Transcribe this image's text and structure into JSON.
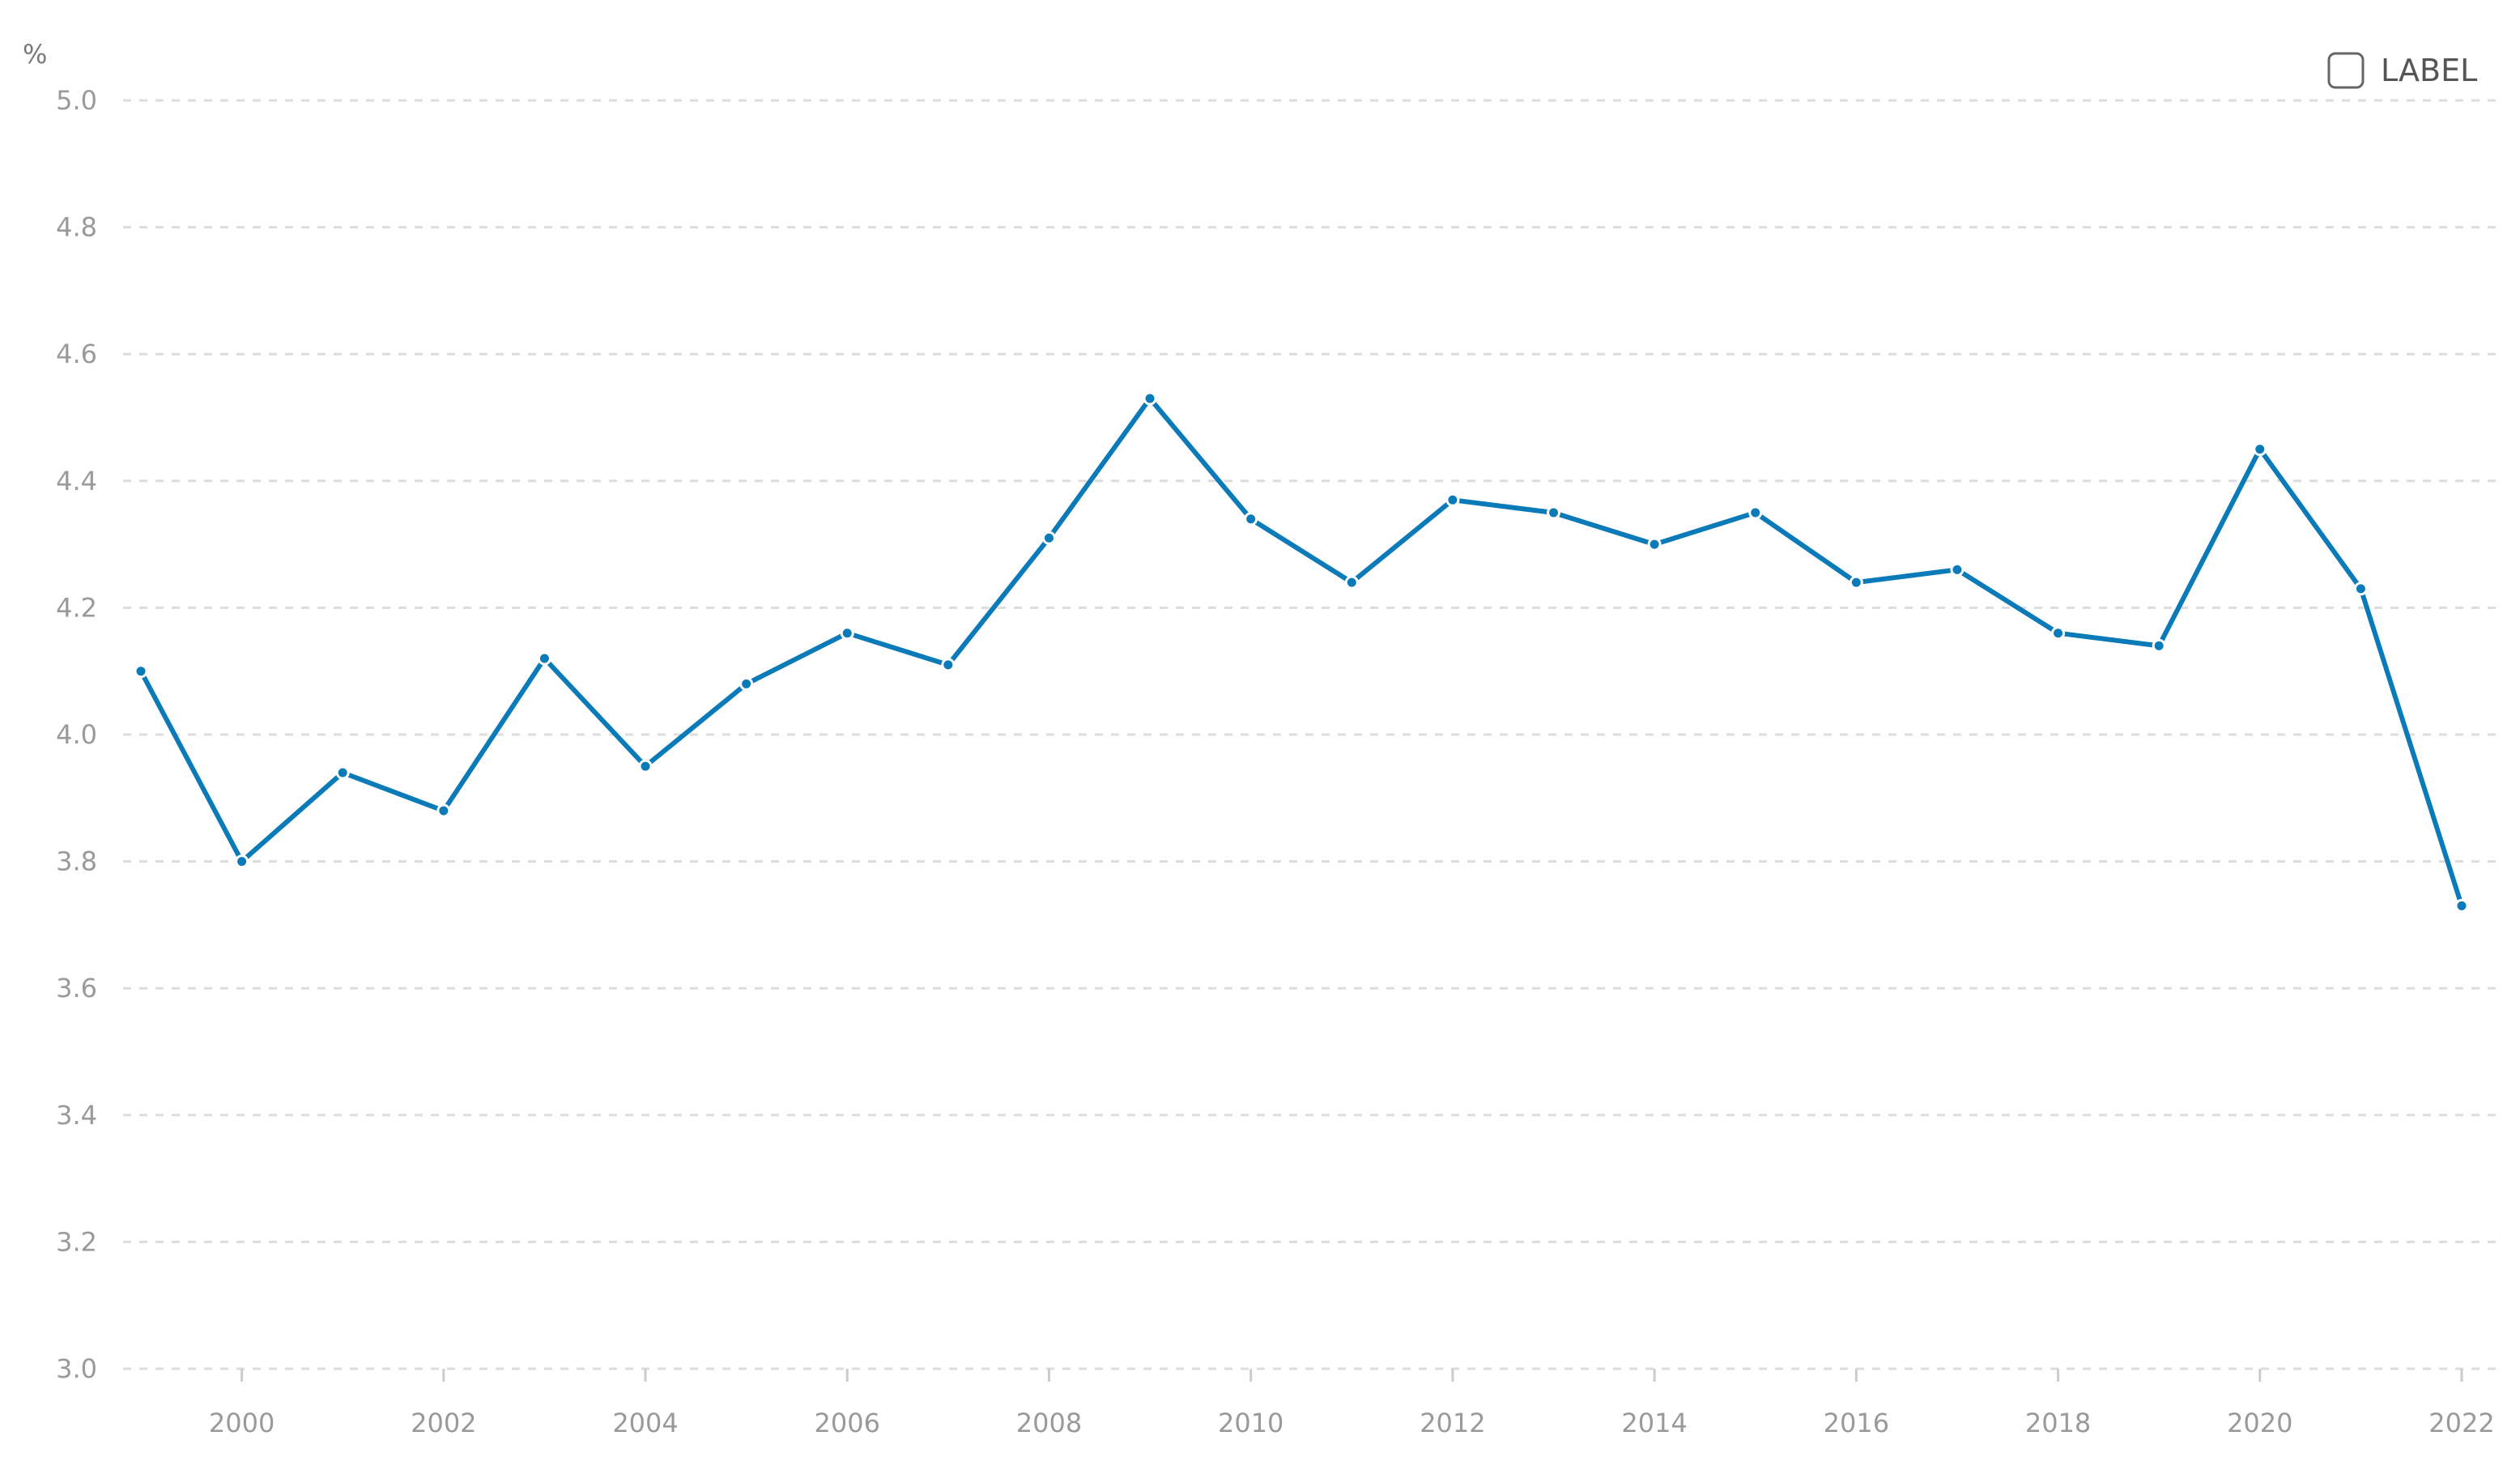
{
  "chart_data": {
    "type": "line",
    "ylabel": "%",
    "ylim": [
      3.0,
      5.0
    ],
    "yticks": [
      "5.0",
      "4.8",
      "4.6",
      "4.4",
      "4.2",
      "4.0",
      "3.8",
      "3.6",
      "3.4",
      "3.2",
      "3.0"
    ],
    "xlim": [
      1999,
      2022
    ],
    "xticks": [
      "2000",
      "2002",
      "2004",
      "2006",
      "2008",
      "2010",
      "2012",
      "2014",
      "2016",
      "2018",
      "2020",
      "2022"
    ],
    "grid": true,
    "legend": {
      "position": "top-right",
      "label": "LABEL",
      "checked": false
    },
    "series": [
      {
        "color": "#0a7ab8",
        "x": [
          1999,
          2000,
          2001,
          2002,
          2003,
          2004,
          2005,
          2006,
          2007,
          2008,
          2009,
          2010,
          2011,
          2012,
          2013,
          2014,
          2015,
          2016,
          2017,
          2018,
          2019,
          2020,
          2021,
          2022
        ],
        "values": [
          4.1,
          3.8,
          3.94,
          3.88,
          4.12,
          3.95,
          4.08,
          4.16,
          4.11,
          4.31,
          4.53,
          4.34,
          4.24,
          4.37,
          4.35,
          4.3,
          4.35,
          4.24,
          4.26,
          4.16,
          4.14,
          4.45,
          4.23,
          3.73
        ]
      }
    ]
  }
}
